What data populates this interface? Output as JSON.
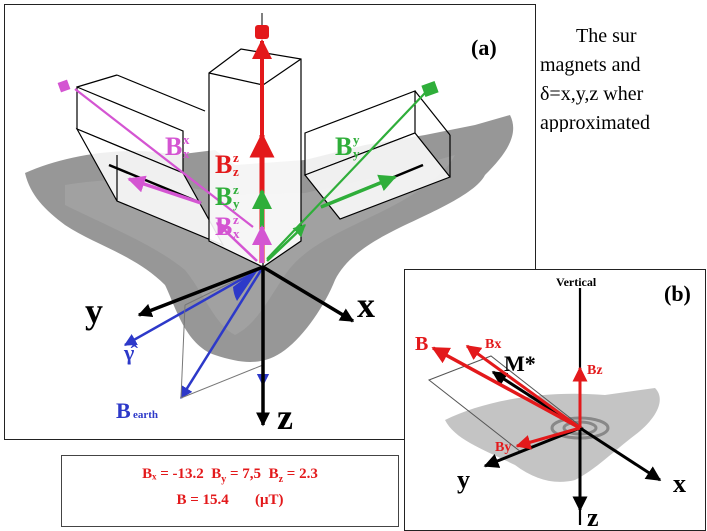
{
  "body_text": {
    "line1": "The sur",
    "line2": "magnets and",
    "line3": "δ=x,y,z wher",
    "line4": "approximated"
  },
  "panel_a": {
    "label": "(a)",
    "axes": {
      "x": "x",
      "y": "y",
      "z": "z"
    },
    "components": {
      "bz_z": {
        "base": "B",
        "sup": "z",
        "sub": "z"
      },
      "by_z": {
        "base": "B",
        "sup": "z",
        "sub": "y"
      },
      "bx_z": {
        "base": "B",
        "sup": "z",
        "sub": "x"
      },
      "bx_x": {
        "base": "B",
        "sup": "x",
        "sub": "x"
      },
      "by_y": {
        "base": "B",
        "sup": "y",
        "sub": "y"
      }
    },
    "gamma_hat": "γ̂",
    "b_earth": {
      "base": "B",
      "sub": "earth"
    },
    "colors": {
      "red": "#e3191b",
      "green": "#2fae3a",
      "magenta": "#d455d2",
      "blue": "#2d39c9",
      "gray": "#8a8a8a"
    }
  },
  "panel_b": {
    "label": "(b)",
    "vertical": "Vertical",
    "m_star": "M*",
    "b": "B",
    "bx": "Bx",
    "by": "By",
    "bz": "Bz",
    "axes": {
      "x": "x",
      "y": "y",
      "z": "z"
    }
  },
  "values_box": {
    "bx_label": "Bₓ = -13.2",
    "by_label": "B",
    "by_sub": "y",
    "by_value": " = 7,5",
    "bz_label": "B",
    "bz_sub": "z",
    "bz_value": " = 2.3",
    "b_total": "B = 15.4",
    "unit": "(μT)"
  }
}
